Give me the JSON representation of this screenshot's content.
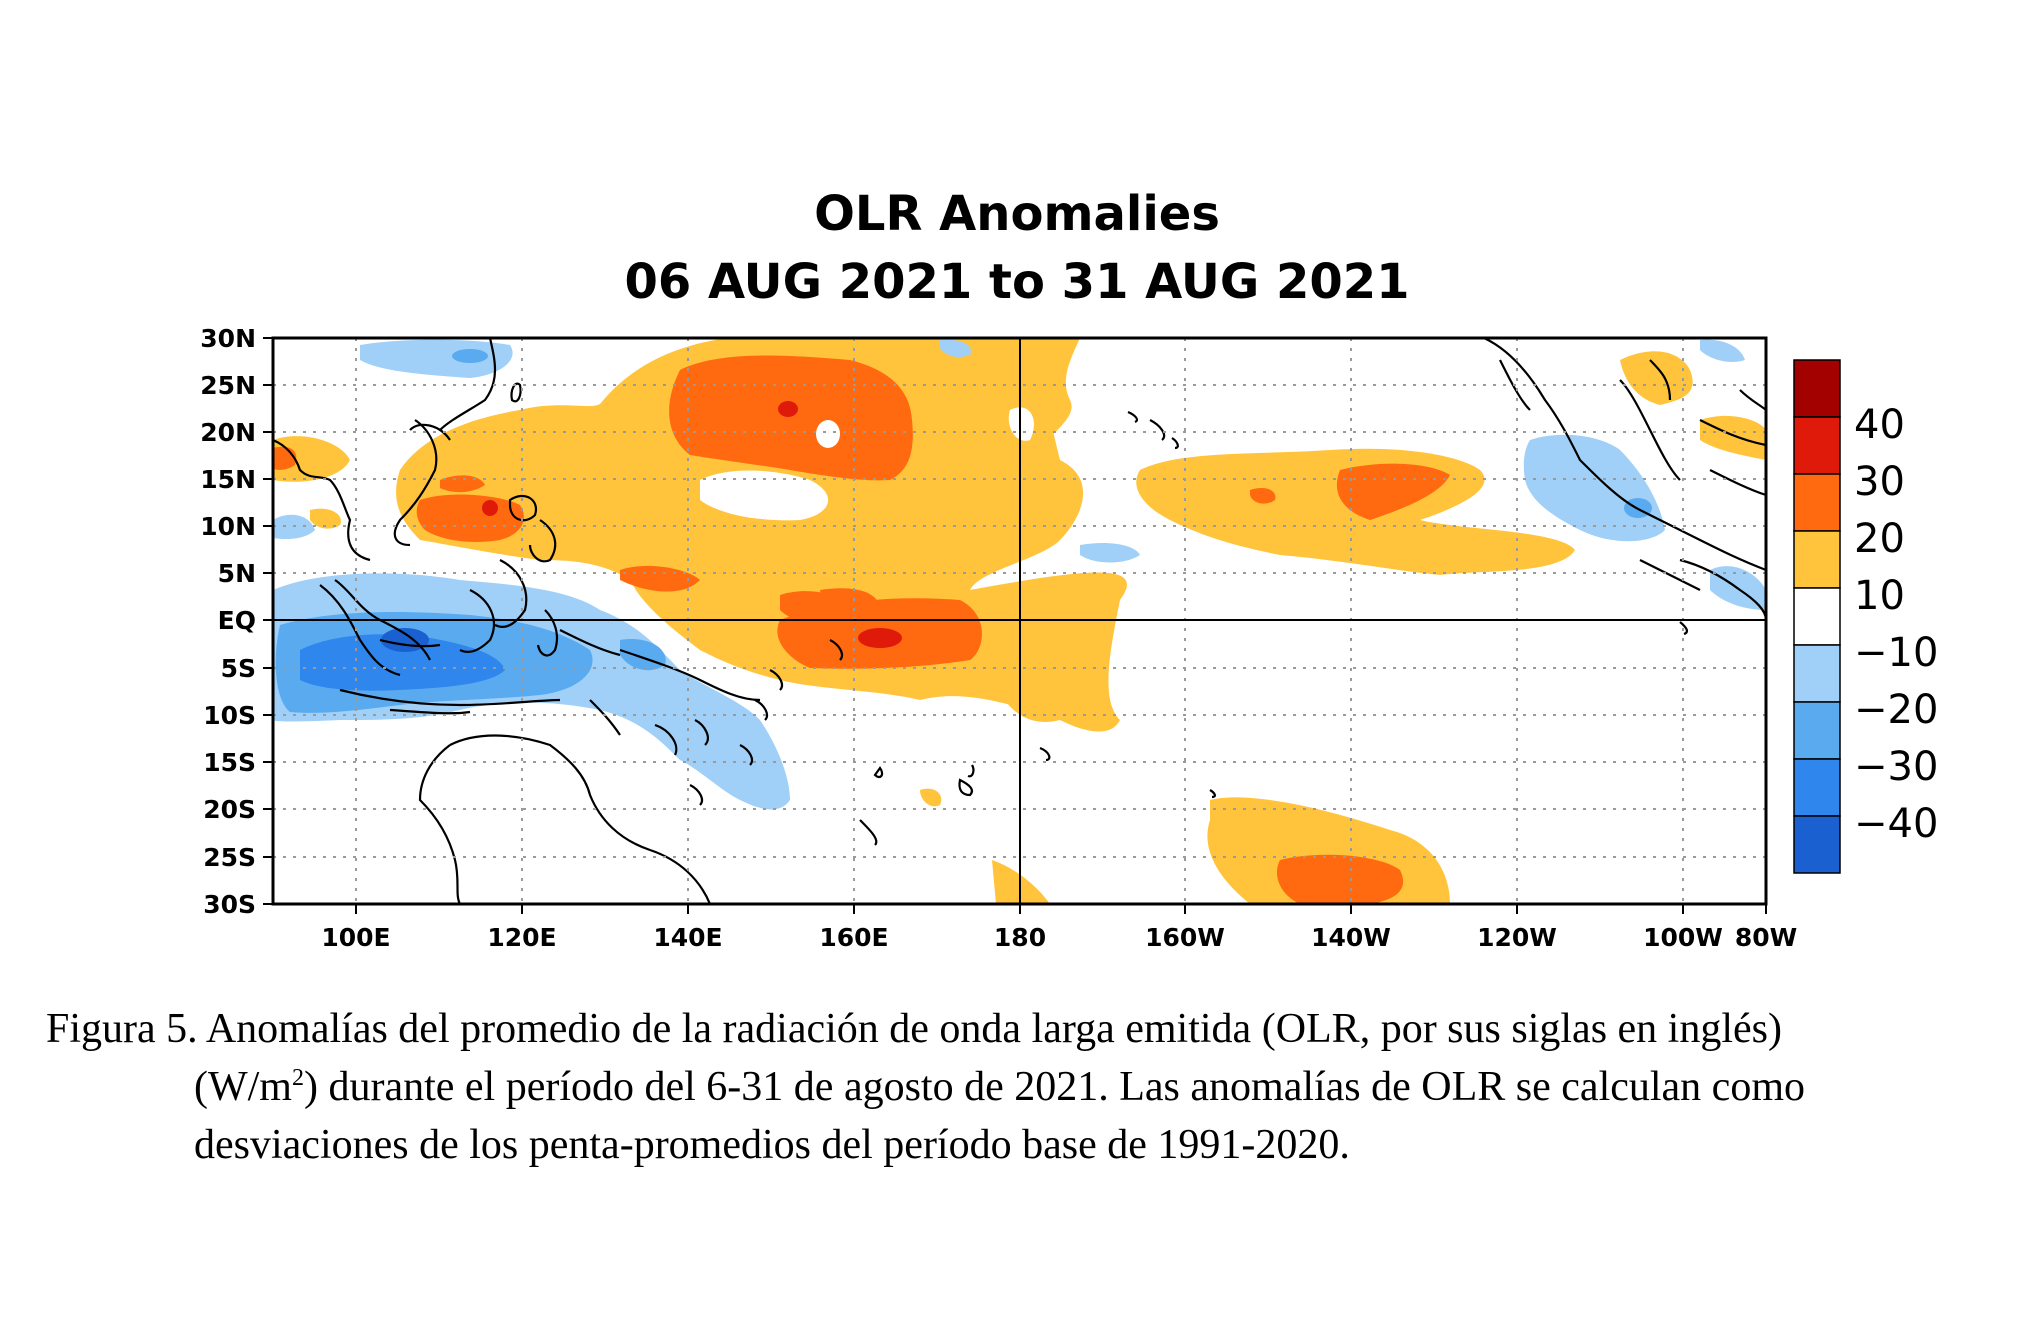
{
  "map": {
    "title_line1": "OLR Anomalies",
    "title_line2": "06 AUG 2021 to 31 AUG 2021",
    "lat_ticks": [
      "30N",
      "25N",
      "20N",
      "15N",
      "10N",
      "5N",
      "EQ",
      "5S",
      "10S",
      "15S",
      "20S",
      "25S",
      "30S"
    ],
    "lon_ticks": [
      "100E",
      "120E",
      "140E",
      "160E",
      "180",
      "160W",
      "140W",
      "120W",
      "100W",
      "80W"
    ],
    "colors": {
      "red_dark": "#a30000",
      "red": "#e01a0b",
      "orange": "#ff6a10",
      "yellow_orange": "#ffc43c",
      "white": "#ffffff",
      "blue_light": "#a0d0f8",
      "blue_mid": "#5aaaf0",
      "blue": "#2f86ec",
      "blue_dark": "#1b60d0"
    },
    "legend": {
      "labels": [
        "40",
        "30",
        "20",
        "10",
        "−10",
        "−20",
        "−30",
        "−40"
      ],
      "bins": [
        "#a30000",
        "#e01a0b",
        "#ff6a10",
        "#ffc43c",
        "#ffffff",
        "#a0d0f8",
        "#5aaaf0",
        "#2f86ec",
        "#1b60d0"
      ]
    }
  },
  "caption": {
    "line1": "Figura 5. Anomalías del promedio de la radiación de onda larga emitida (OLR, por sus siglas en inglés)",
    "line2_a": "(W/m",
    "line2_sup": "2",
    "line2_b": ") durante el período del 6-31 de agosto de 2021.  Las anomalías de OLR se calculan como",
    "line3": "desviaciones de los penta-promedios del período base de 1991-2020."
  }
}
